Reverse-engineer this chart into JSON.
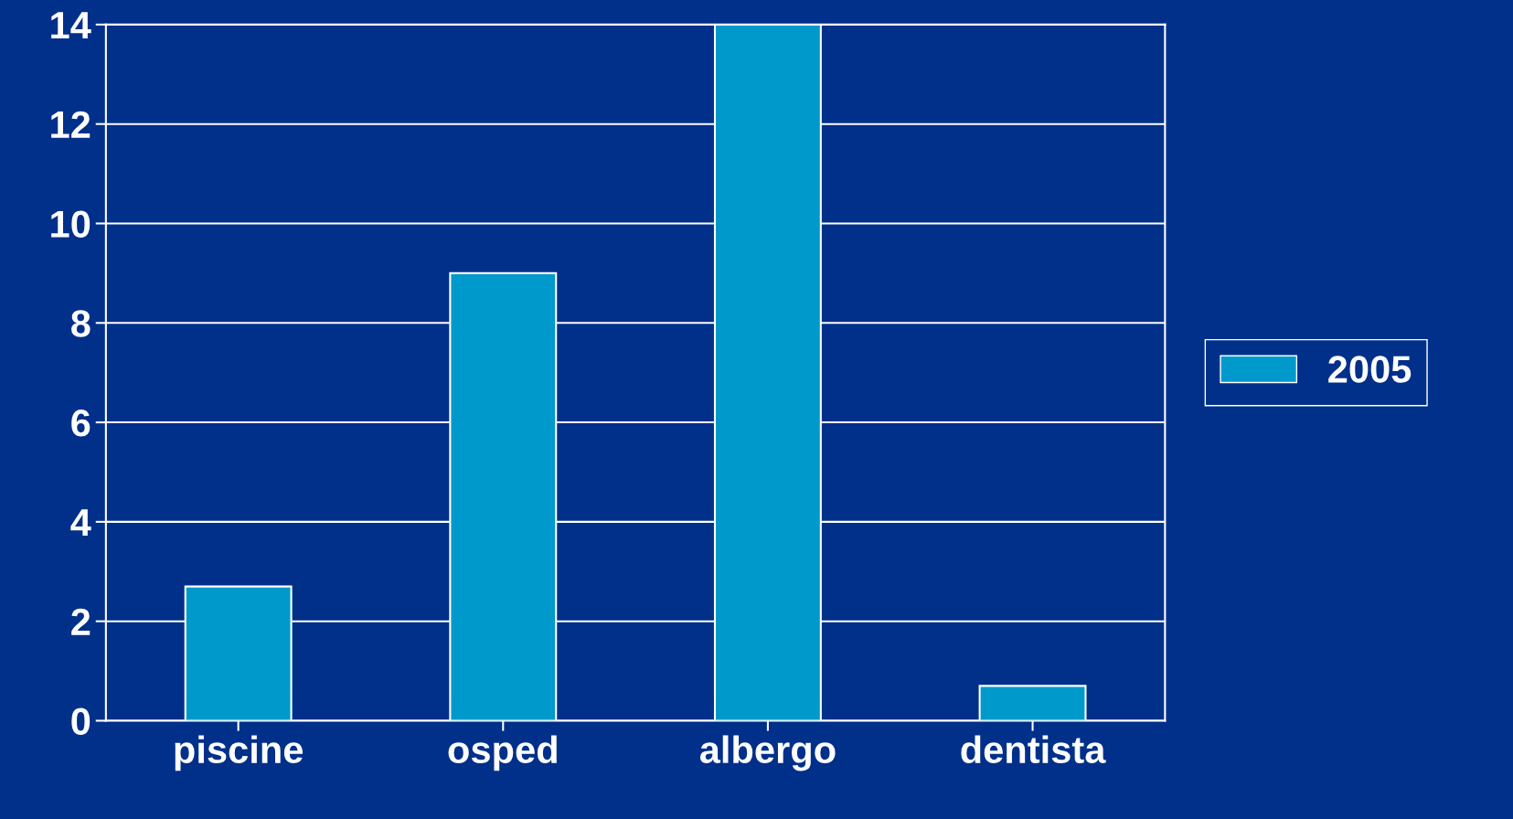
{
  "chart_data": {
    "type": "bar",
    "categories": [
      "piscine",
      "osped",
      "albergo",
      "dentista"
    ],
    "series": [
      {
        "name": "2005",
        "color": "#0099cc",
        "values": [
          2.7,
          9,
          14,
          0.7
        ]
      }
    ],
    "ylim": [
      0,
      14
    ],
    "yticks": [
      0,
      2,
      4,
      6,
      8,
      10,
      12,
      14
    ],
    "grid": "y",
    "legend": "right"
  }
}
